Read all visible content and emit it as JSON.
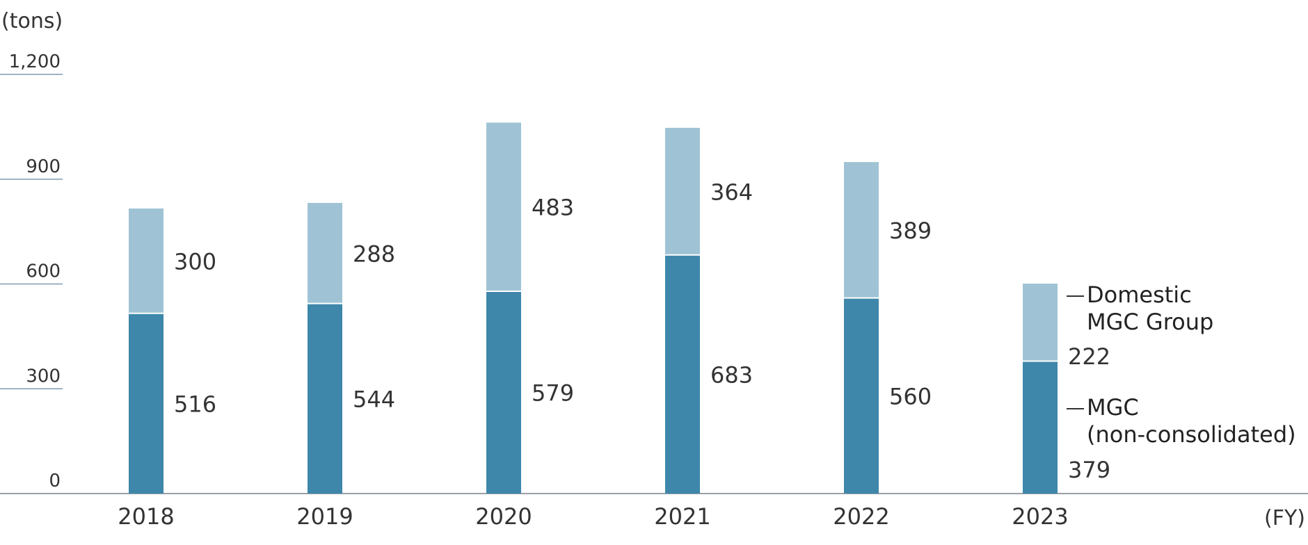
{
  "chart_data": {
    "type": "bar",
    "stacked": true,
    "y_unit_label": "(tons)",
    "x_unit_label": "(FY)",
    "ylim": [
      0,
      1200
    ],
    "yticks": [
      0,
      300,
      600,
      900,
      1200
    ],
    "ytick_labels": [
      "0",
      "300",
      "600",
      "900",
      "1,200"
    ],
    "categories": [
      "2018",
      "2019",
      "2020",
      "2021",
      "2022",
      "2023"
    ],
    "series": [
      {
        "name_lines": [
          "MGC",
          "(non-consolidated)"
        ],
        "values": [
          516,
          544,
          579,
          683,
          560,
          379
        ],
        "color": "#3e87aa"
      },
      {
        "name_lines": [
          "Domestic",
          "MGC Group"
        ],
        "values": [
          300,
          288,
          483,
          364,
          389,
          222
        ],
        "color": "#9fc3d5"
      }
    ],
    "grid": false,
    "legend": "inline-right-of-last-bar",
    "colors": {
      "axis": "#9aa0a6",
      "tick": "#7f9ab1",
      "text": "#333333"
    }
  }
}
